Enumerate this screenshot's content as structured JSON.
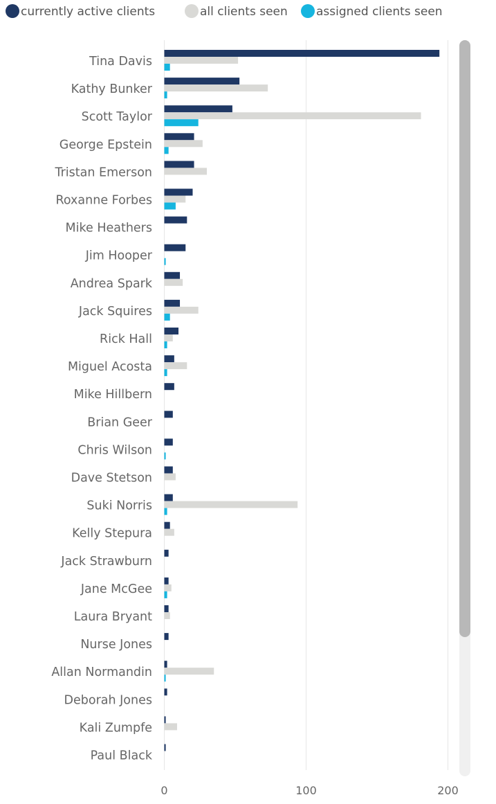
{
  "chart_data": {
    "type": "bar",
    "orientation": "horizontal",
    "categories": [
      "Tina Davis",
      "Kathy Bunker",
      "Scott Taylor",
      "George Epstein",
      "Tristan Emerson",
      "Roxanne Forbes",
      "Mike Heathers",
      "Jim Hooper",
      "Andrea Spark",
      "Jack Squires",
      "Rick Hall",
      "Miguel Acosta",
      "Mike Hillbern",
      "Brian Geer",
      "Chris Wilson",
      "Dave Stetson",
      "Suki Norris",
      "Kelly Stepura",
      "Jack Strawburn",
      "Jane McGee",
      "Laura Bryant",
      "Nurse Jones",
      "Allan Normandin",
      "Deborah Jones",
      "Kali Zumpfe",
      "Paul Black"
    ],
    "series": [
      {
        "name": "currently active clients",
        "color": "#1f3864",
        "values": [
          194,
          53,
          48,
          21,
          21,
          20,
          16,
          15,
          11,
          11,
          10,
          7,
          7,
          6,
          6,
          6,
          6,
          4,
          3,
          3,
          3,
          3,
          2,
          2,
          1,
          1
        ]
      },
      {
        "name": "all clients seen",
        "color": "#d9d9d6",
        "values": [
          52,
          73,
          181,
          27,
          30,
          15,
          0,
          0,
          13,
          24,
          6,
          16,
          0,
          0,
          0,
          8,
          94,
          7,
          0,
          5,
          4,
          0,
          35,
          0,
          9,
          0
        ]
      },
      {
        "name": "assigned clients seen",
        "color": "#16b5df",
        "values": [
          4,
          2,
          24,
          3,
          0,
          8,
          0,
          1,
          0,
          4,
          2,
          2,
          0,
          0,
          1,
          0,
          2,
          0,
          0,
          2,
          0,
          0,
          1,
          0,
          0,
          0
        ]
      }
    ],
    "x_ticks": [
      "0",
      "100",
      "200"
    ],
    "xlim": [
      0,
      200
    ],
    "grid": true,
    "legend_position": "top-left",
    "scrollbar": true
  }
}
